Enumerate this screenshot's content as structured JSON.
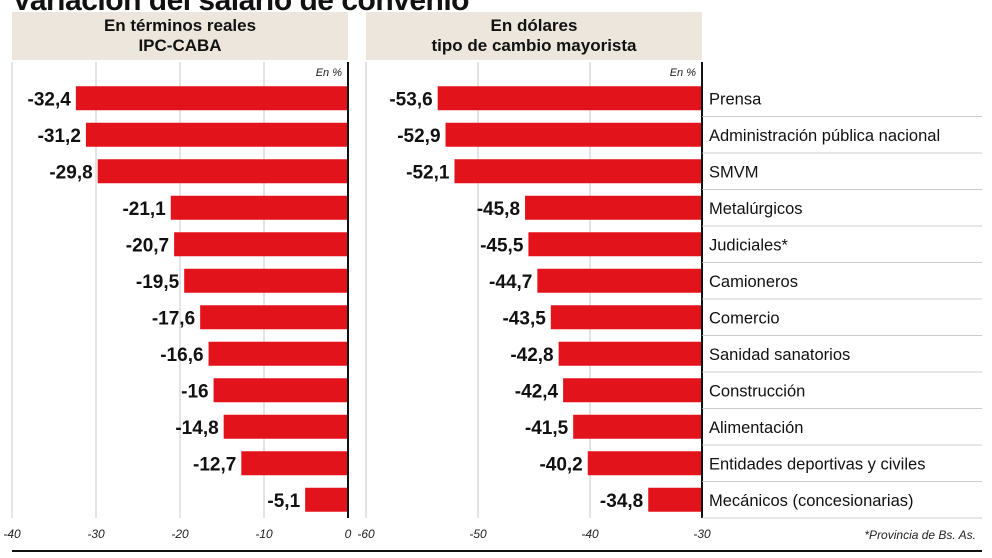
{
  "title": "Variación del salario de convenio",
  "left_header": {
    "line1": "En términos reales",
    "line2": "IPC-CABA"
  },
  "right_header": {
    "line1": "En dólares",
    "line2": "tipo de cambio mayorista"
  },
  "unit_label": "En %",
  "footnote": "*Provincia de Bs. As.",
  "colors": {
    "bar": "#e3131b",
    "header_bg": "#ece6dc",
    "grid": "#bbbbbb"
  },
  "chart_data": [
    {
      "type": "bar",
      "orientation": "horizontal",
      "title": "En términos reales IPC-CABA",
      "xlim": [
        -40,
        0
      ],
      "xticks": [
        -40,
        -30,
        -20,
        -10,
        0
      ],
      "xtick_labels": [
        "-40",
        "-30",
        "-20",
        "-10",
        "0"
      ],
      "categories": [
        "Prensa",
        "Administración pública nacional",
        "SMVM",
        "Metalúrgicos",
        "Judiciales*",
        "Camioneros",
        "Comercio",
        "Sanidad sanatorios",
        "Construcción",
        "Alimentación",
        "Entidades deportivas y civiles",
        "Mecánicos (concesionarias)"
      ],
      "values": [
        -32.4,
        -31.2,
        -29.8,
        -21.1,
        -20.7,
        -19.5,
        -17.6,
        -16.6,
        -16,
        -14.8,
        -12.7,
        -5.1
      ],
      "value_labels": [
        "-32,4",
        "-31,2",
        "-29,8",
        "-21,1",
        "-20,7",
        "-19,5",
        "-17,6",
        "-16,6",
        "-16",
        "-14,8",
        "-12,7",
        "-5,1"
      ]
    },
    {
      "type": "bar",
      "orientation": "horizontal",
      "title": "En dólares tipo de cambio mayorista",
      "xlim": [
        -60,
        -30
      ],
      "xticks": [
        -60,
        -50,
        -40,
        -30
      ],
      "xtick_labels": [
        "-60",
        "-50",
        "-40",
        "-30"
      ],
      "categories": [
        "Prensa",
        "Administración pública nacional",
        "SMVM",
        "Metalúrgicos",
        "Judiciales*",
        "Camioneros",
        "Comercio",
        "Sanidad sanatorios",
        "Construcción",
        "Alimentación",
        "Entidades deportivas y civiles",
        "Mecánicos (concesionarias)"
      ],
      "values": [
        -53.6,
        -52.9,
        -52.1,
        -45.8,
        -45.5,
        -44.7,
        -43.5,
        -42.8,
        -42.4,
        -41.5,
        -40.2,
        -34.8
      ],
      "value_labels": [
        "-53,6",
        "-52,9",
        "-52,1",
        "-45,8",
        "-45,5",
        "-44,7",
        "-43,5",
        "-42,8",
        "-42,4",
        "-41,5",
        "-40,2",
        "-34,8"
      ]
    }
  ]
}
